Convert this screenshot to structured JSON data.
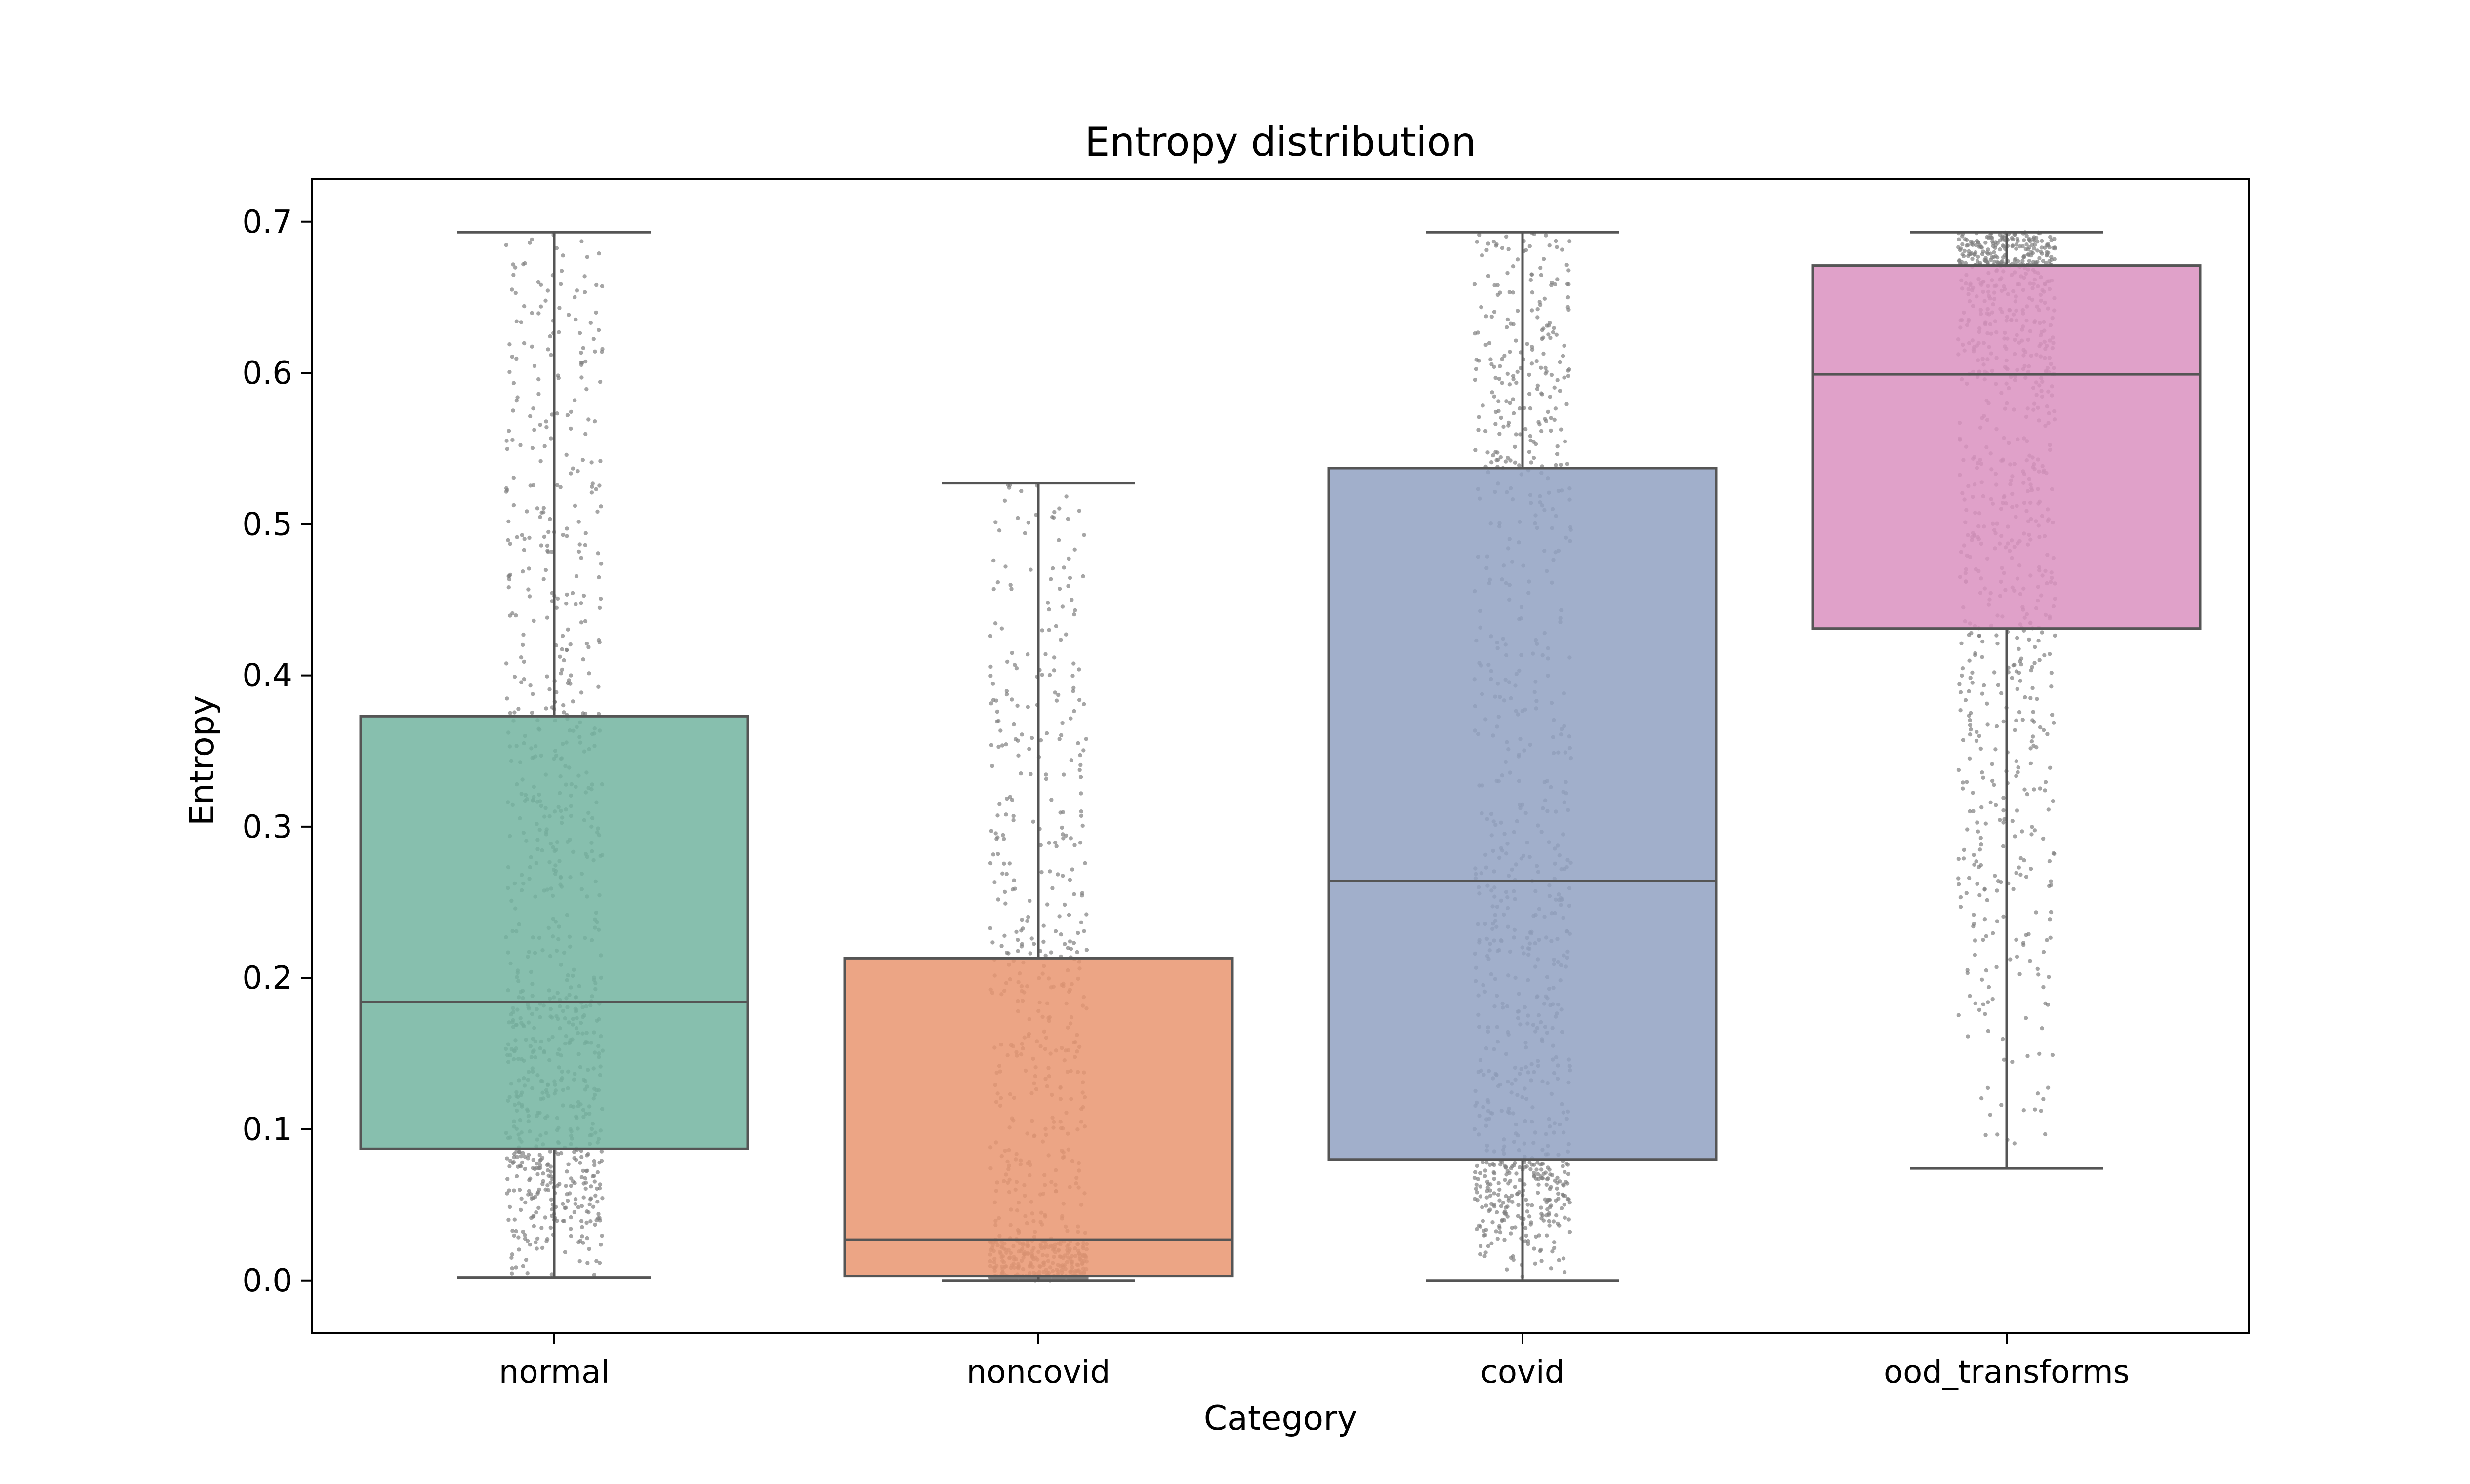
{
  "chart_data": {
    "type": "box",
    "title": "Entropy distribution",
    "xlabel": "Category",
    "ylabel": "Entropy",
    "ylim": [
      -0.035,
      0.728
    ],
    "yticks": [
      0.0,
      0.1,
      0.2,
      0.3,
      0.4,
      0.5,
      0.6,
      0.7
    ],
    "ytick_labels": [
      "0.0",
      "0.1",
      "0.2",
      "0.3",
      "0.4",
      "0.5",
      "0.6",
      "0.7"
    ],
    "grid": false,
    "legend": "none",
    "categories": [
      "normal",
      "noncovid",
      "covid",
      "ood_transforms"
    ],
    "boxes": [
      {
        "category": "normal",
        "whisker_low": 0.002,
        "q1": 0.087,
        "median": 0.184,
        "q3": 0.373,
        "whisker_high": 0.693,
        "color": "#72b4a0"
      },
      {
        "category": "noncovid",
        "whisker_low": 0.0,
        "q1": 0.003,
        "median": 0.027,
        "q3": 0.213,
        "whisker_high": 0.527,
        "color": "#e99570"
      },
      {
        "category": "covid",
        "whisker_low": 0.0,
        "q1": 0.08,
        "median": 0.264,
        "q3": 0.537,
        "whisker_high": 0.693,
        "color": "#91a1c2"
      },
      {
        "category": "ood_transforms",
        "whisker_low": 0.074,
        "q1": 0.431,
        "median": 0.599,
        "q3": 0.671,
        "whisker_high": 0.693,
        "color": "#da90bf"
      }
    ],
    "point_color": "#808080",
    "line_color": "#555555"
  }
}
